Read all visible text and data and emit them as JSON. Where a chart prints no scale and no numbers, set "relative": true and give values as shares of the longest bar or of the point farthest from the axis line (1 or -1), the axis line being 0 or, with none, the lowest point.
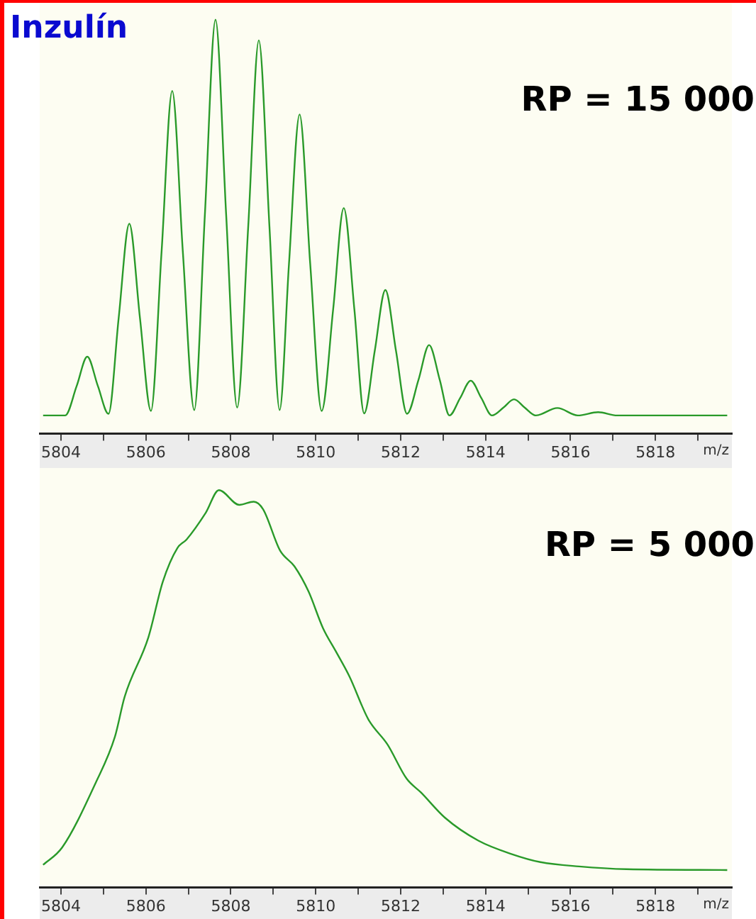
{
  "chart_data": [
    {
      "type": "line",
      "title": "Inzulín",
      "annotations": [
        "RP = 15 000"
      ],
      "xlabel": "m/z",
      "relative": true,
      "color": "#2a9a2a",
      "xlim": [
        5803.5,
        5819.8
      ],
      "xticks": [
        5804,
        {
          "value": 5805,
          "label": null
        },
        5806,
        {
          "value": 5807,
          "label": null
        },
        5808,
        {
          "value": 5809,
          "label": null
        },
        5810,
        {
          "value": 5811,
          "label": null
        },
        5812,
        {
          "value": 5813,
          "label": null
        },
        5814,
        {
          "value": 5815,
          "label": null
        },
        5816,
        {
          "value": 5817,
          "label": null
        },
        5818,
        {
          "value": 5819,
          "label": null
        }
      ],
      "x": [
        5803.58,
        5804.1,
        5804.37,
        5804.62,
        5804.87,
        5805.12,
        5805.36,
        5805.61,
        5805.86,
        5806.12,
        5806.37,
        5806.62,
        5806.87,
        5807.14,
        5807.39,
        5807.64,
        5807.89,
        5808.15,
        5808.41,
        5808.66,
        5808.91,
        5809.15,
        5809.37,
        5809.62,
        5809.87,
        5810.14,
        5810.41,
        5810.66,
        5810.91,
        5811.14,
        5811.39,
        5811.64,
        5811.89,
        5812.15,
        5812.42,
        5812.67,
        5812.92,
        5813.15,
        5813.4,
        5813.65,
        5813.9,
        5814.15,
        5814.42,
        5814.67,
        5814.92,
        5815.18,
        5815.69,
        5816.17,
        5816.65,
        5817.1,
        5819.69
      ],
      "values": [
        0.044,
        0.044,
        0.115,
        0.186,
        0.115,
        0.048,
        0.28,
        0.507,
        0.28,
        0.055,
        0.44,
        0.828,
        0.44,
        0.057,
        0.53,
        1,
        0.53,
        0.063,
        0.5,
        0.95,
        0.5,
        0.057,
        0.41,
        0.771,
        0.41,
        0.055,
        0.3,
        0.545,
        0.3,
        0.049,
        0.2,
        0.347,
        0.2,
        0.048,
        0.13,
        0.214,
        0.13,
        0.044,
        0.086,
        0.128,
        0.086,
        0.044,
        0.063,
        0.083,
        0.063,
        0.044,
        0.062,
        0.044,
        0.052,
        0.044,
        0.044
      ]
    },
    {
      "type": "line",
      "annotations": [
        "RP = 5 000"
      ],
      "xlabel": "m/z",
      "relative": true,
      "color": "#2a9a2a",
      "xlim": [
        5803.5,
        5819.8
      ],
      "xticks": [
        5804,
        {
          "value": 5805,
          "label": null
        },
        5806,
        {
          "value": 5807,
          "label": null
        },
        5808,
        {
          "value": 5809,
          "label": null
        },
        5810,
        {
          "value": 5811,
          "label": null
        },
        5812,
        {
          "value": 5813,
          "label": null
        },
        5814,
        {
          "value": 5815,
          "label": null
        },
        5816,
        {
          "value": 5817,
          "label": null
        },
        5818,
        {
          "value": 5819,
          "label": null
        }
      ],
      "x": [
        5803.58,
        5804.03,
        5804.82,
        5805.27,
        5805.5,
        5806.06,
        5806.4,
        5806.74,
        5806.96,
        5807.41,
        5807.72,
        5808.2,
        5808.54,
        5808.76,
        5809.16,
        5809.5,
        5809.83,
        5810.17,
        5810.47,
        5810.79,
        5811.24,
        5811.69,
        5812.14,
        5812.48,
        5813.04,
        5813.83,
        5814.62,
        5815.29,
        5816.2,
        5817.32,
        5819.69
      ],
      "values": [
        0.057,
        0.101,
        0.264,
        0.379,
        0.48,
        0.63,
        0.77,
        0.854,
        0.876,
        0.943,
        1,
        0.963,
        0.971,
        0.952,
        0.848,
        0.808,
        0.745,
        0.653,
        0.595,
        0.532,
        0.423,
        0.36,
        0.274,
        0.239,
        0.176,
        0.118,
        0.084,
        0.064,
        0.053,
        0.046,
        0.044
      ]
    }
  ]
}
